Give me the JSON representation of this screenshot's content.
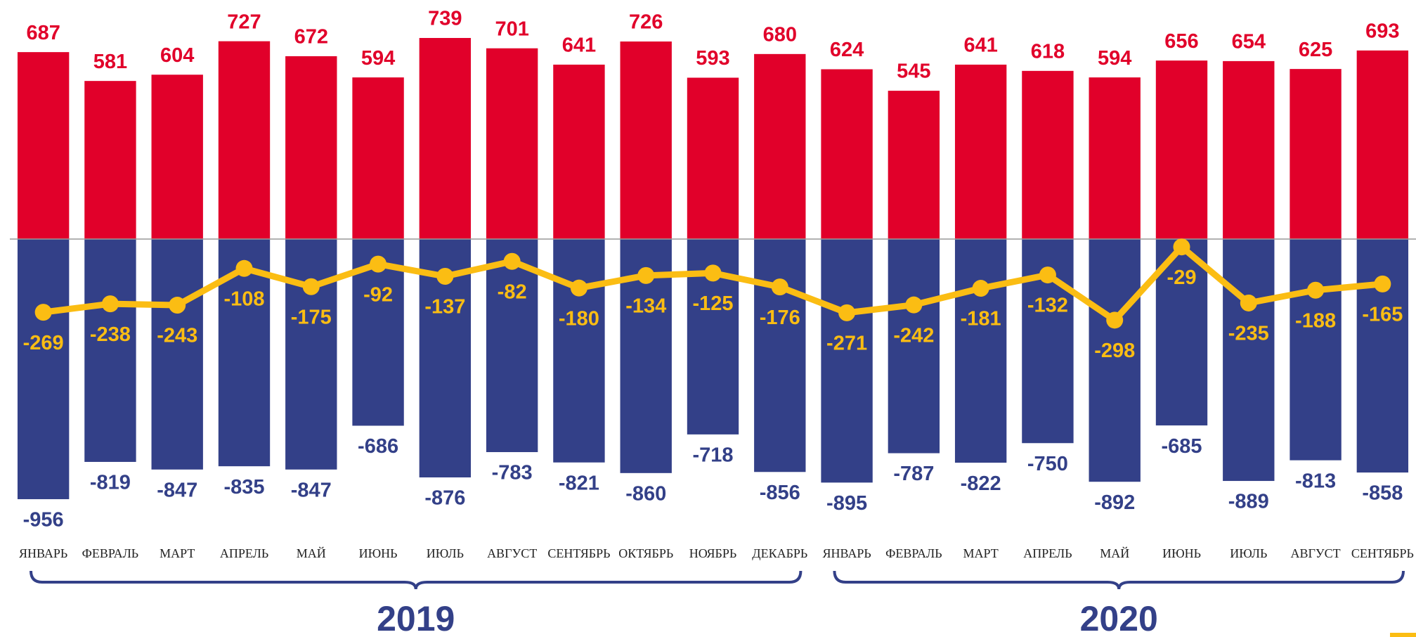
{
  "chart_data": {
    "type": "bar",
    "categories": [
      "ЯНВАРЬ",
      "ФЕВРАЛЬ",
      "МАРТ",
      "АПРЕЛЬ",
      "МАЙ",
      "ИЮНЬ",
      "ИЮЛЬ",
      "АВГУСТ",
      "СЕНТЯБРЬ",
      "ОКТЯБРЬ",
      "НОЯБРЬ",
      "ДЕКАБРЬ",
      "ЯНВАРЬ",
      "ФЕВРАЛЬ",
      "МАРТ",
      "АПРЕЛЬ",
      "МАЙ",
      "ИЮНЬ",
      "ИЮЛЬ",
      "АВГУСТ",
      "СЕНТЯБРЬ"
    ],
    "series": [
      {
        "type": "bar",
        "color": "#e1002a",
        "values": [
          687,
          581,
          604,
          727,
          672,
          594,
          739,
          701,
          641,
          726,
          593,
          680,
          624,
          545,
          641,
          618,
          594,
          656,
          654,
          625,
          693
        ]
      },
      {
        "type": "bar",
        "color": "#334088",
        "values": [
          -956,
          -819,
          -847,
          -835,
          -847,
          -686,
          -876,
          -783,
          -821,
          -860,
          -718,
          -856,
          -895,
          -787,
          -822,
          -750,
          -892,
          -685,
          -889,
          -813,
          -858
        ]
      },
      {
        "type": "line",
        "color": "#fbbd13",
        "values": [
          -269,
          -238,
          -243,
          -108,
          -175,
          -92,
          -137,
          -82,
          -180,
          -134,
          -125,
          -176,
          -271,
          -242,
          -181,
          -132,
          -298,
          -29,
          -235,
          -188,
          -165
        ]
      }
    ],
    "groups": [
      {
        "label": "2019",
        "size": 12
      },
      {
        "label": "2020",
        "size": 9
      }
    ]
  }
}
